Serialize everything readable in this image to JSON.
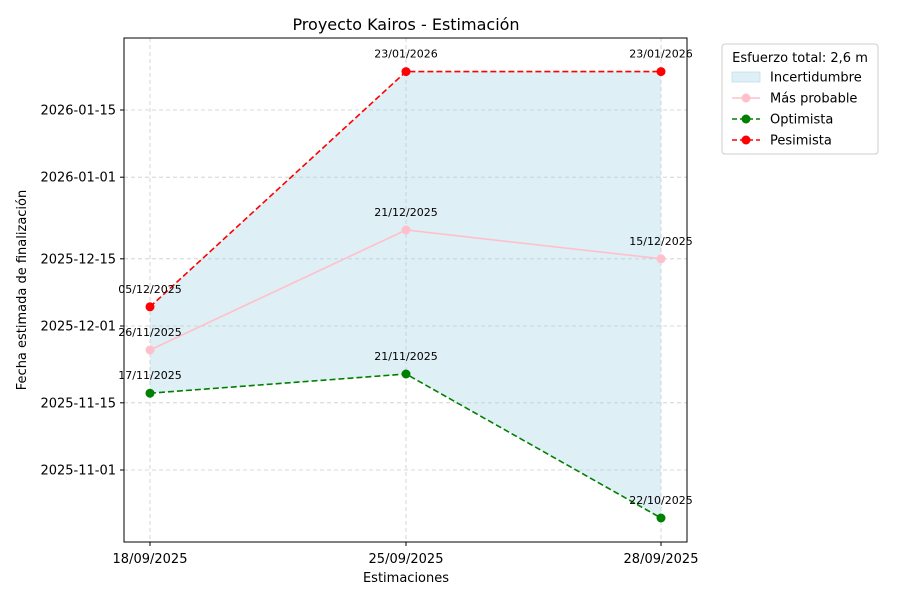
{
  "chart_data": {
    "type": "line",
    "title": "Proyecto Kairos - Estimación",
    "xlabel": "Estimaciones",
    "ylabel": "Fecha estimada de finalización",
    "categories": [
      "18/09/2025",
      "25/09/2025",
      "28/09/2025"
    ],
    "y_ticks": [
      "2025-11-01",
      "2025-11-15",
      "2025-12-01",
      "2025-12-15",
      "2026-01-01",
      "2026-01-15"
    ],
    "ylim": [
      "2025-10-17",
      "2026-01-30"
    ],
    "grid": true,
    "legend": {
      "title": "Esfuerzo total: 2,6 m",
      "placement": "outside-top-right",
      "entries": [
        {
          "label": "Incertidumbre",
          "kind": "area",
          "color": "#add8e6"
        },
        {
          "label": "Más probable",
          "kind": "line",
          "color": "#ffc0cb"
        },
        {
          "label": "Optimista",
          "kind": "dashed",
          "color": "#008000"
        },
        {
          "label": "Pesimista",
          "kind": "dashed",
          "color": "#ff0000"
        }
      ]
    },
    "uncertainty_band": {
      "lower": "Optimista",
      "upper": "Pesimista",
      "color": "#add8e6"
    },
    "series": [
      {
        "name": "Más probable",
        "color": "#ffc0cb",
        "style": "solid",
        "values": [
          "2025-11-26",
          "2025-12-21",
          "2025-12-15"
        ],
        "labels": [
          "26/11/2025",
          "21/12/2025",
          "15/12/2025"
        ]
      },
      {
        "name": "Optimista",
        "color": "#008000",
        "style": "dashed",
        "values": [
          "2025-11-17",
          "2025-11-21",
          "2025-10-22"
        ],
        "labels": [
          "17/11/2025",
          "21/11/2025",
          "22/10/2025"
        ]
      },
      {
        "name": "Pesimista",
        "color": "#ff0000",
        "style": "dashed",
        "values": [
          "2025-12-05",
          "2026-01-23",
          "2026-01-23"
        ],
        "labels": [
          "05/12/2025",
          "23/01/2026",
          "23/01/2026"
        ]
      }
    ]
  }
}
